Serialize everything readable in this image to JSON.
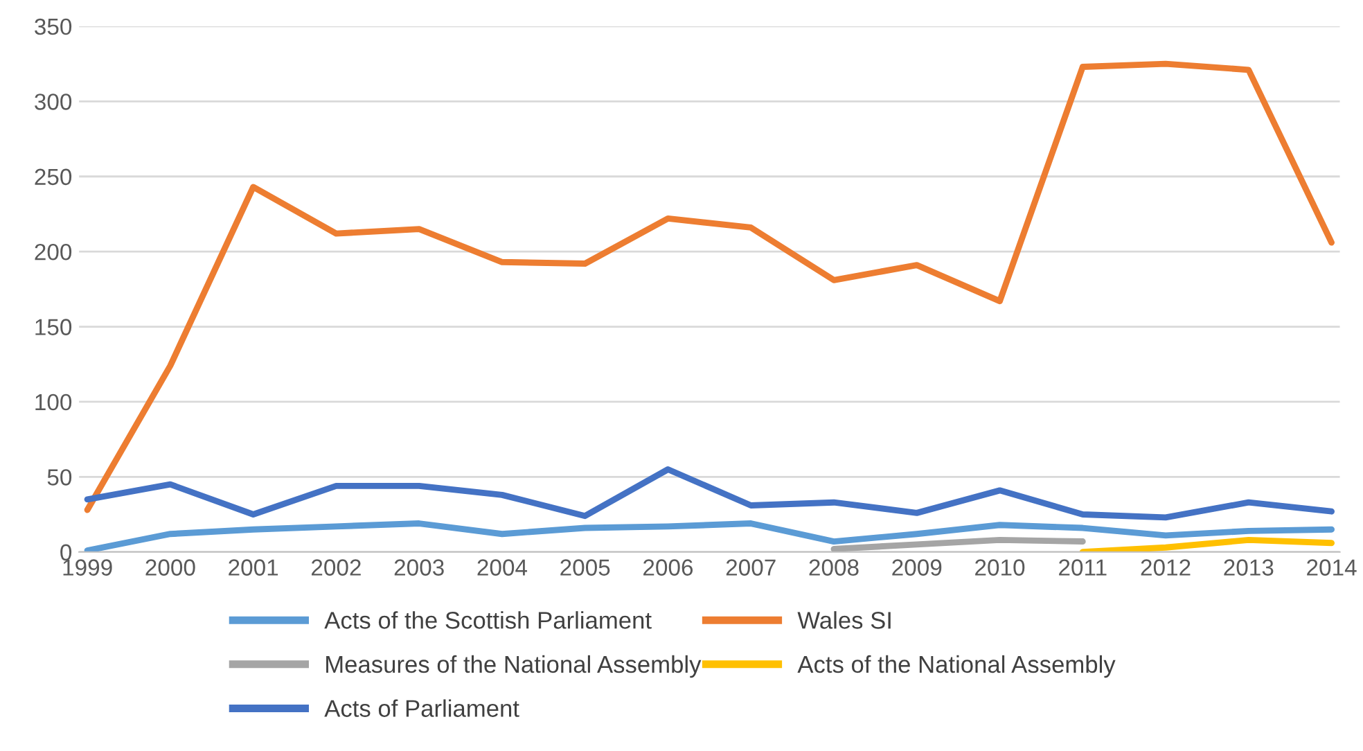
{
  "chart_data": {
    "type": "line",
    "categories": [
      "1999",
      "2000",
      "2001",
      "2002",
      "2003",
      "2004",
      "2005",
      "2006",
      "2007",
      "2008",
      "2009",
      "2010",
      "2011",
      "2012",
      "2013",
      "2014"
    ],
    "ylim": [
      0,
      350
    ],
    "yticks": [
      0,
      50,
      100,
      150,
      200,
      250,
      300,
      350
    ],
    "grid": "y",
    "legend": "bottom",
    "line_style": "solid",
    "marker": "none",
    "series": [
      {
        "name": "Acts of the Scottish Parliament",
        "color": "#5b9bd5",
        "values": [
          1,
          12,
          15,
          17,
          19,
          12,
          16,
          17,
          19,
          7,
          12,
          18,
          16,
          11,
          14,
          15
        ]
      },
      {
        "name": "Wales SI",
        "color": "#ed7d31",
        "values": [
          28,
          124,
          243,
          212,
          215,
          193,
          192,
          222,
          216,
          181,
          191,
          167,
          323,
          325,
          321,
          206
        ]
      },
      {
        "name": "Measures of the National Assembly",
        "color": "#a5a5a5",
        "values": [
          null,
          null,
          null,
          null,
          null,
          null,
          null,
          null,
          null,
          2,
          5,
          8,
          7,
          null,
          null,
          null
        ]
      },
      {
        "name": "Acts of the National Assembly",
        "color": "#ffc000",
        "values": [
          null,
          null,
          null,
          null,
          null,
          null,
          null,
          null,
          null,
          null,
          null,
          null,
          0,
          3,
          8,
          6
        ]
      },
      {
        "name": "Acts of Parliament",
        "color": "#4472c4",
        "values": [
          35,
          45,
          25,
          44,
          44,
          38,
          24,
          55,
          31,
          33,
          26,
          41,
          25,
          23,
          33,
          27
        ]
      }
    ]
  }
}
